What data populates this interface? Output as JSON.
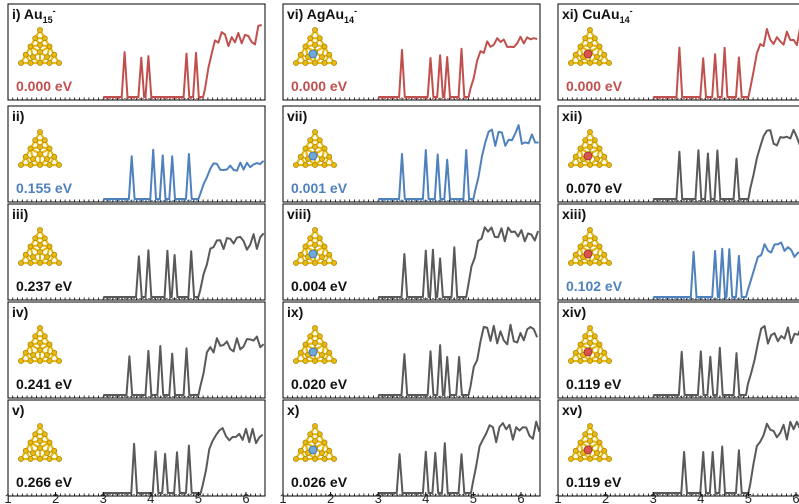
{
  "colors": {
    "red": "#c0504d",
    "blue": "#4f81bd",
    "gray": "#595959",
    "gold": "#e8b90f",
    "gold_dark": "#9a7400",
    "red_atom": "#d9534f",
    "blue_atom": "#6fa8dc"
  },
  "chart_data": [
    {
      "type": "line",
      "x_range": [
        1,
        6.4
      ],
      "x_ticks": [
        "1",
        "2",
        "3",
        "4",
        "5",
        "6"
      ],
      "panels": [
        {
          "id": "i",
          "label_main": "i) Au",
          "label_sub": "15",
          "label_sup": "-",
          "energy": "0.000 eV",
          "color": "red",
          "dopant": "none",
          "peaks": [
            3.45,
            3.8,
            3.95,
            4.75,
            4.95
          ],
          "onset": 5.1,
          "level": 0.72
        },
        {
          "id": "ii",
          "label_main": "ii)",
          "label_sub": "",
          "label_sup": "",
          "energy": "0.155 eV",
          "color": "blue",
          "dopant": "none",
          "peaks": [
            3.6,
            4.05,
            4.25,
            4.45,
            4.8
          ],
          "onset": 5.0,
          "level": 0.38
        },
        {
          "id": "iii",
          "label_main": "iii)",
          "label_sub": "",
          "label_sup": "",
          "energy": "0.237 eV",
          "color": "gray",
          "dopant": "none",
          "peaks": [
            3.75,
            3.95,
            4.35,
            4.5,
            4.85
          ],
          "onset": 5.0,
          "level": 0.62
        },
        {
          "id": "iv",
          "label_main": "iv)",
          "label_sub": "",
          "label_sup": "",
          "energy": "0.241 eV",
          "color": "gray",
          "dopant": "none",
          "peaks": [
            3.55,
            3.95,
            4.2,
            4.45,
            4.75
          ],
          "onset": 5.0,
          "level": 0.62
        },
        {
          "id": "v",
          "label_main": "v)",
          "label_sub": "",
          "label_sup": "",
          "energy": "0.266 eV",
          "color": "gray",
          "dopant": "none",
          "peaks": [
            3.65,
            4.1,
            4.3,
            4.55,
            4.8
          ],
          "onset": 5.05,
          "level": 0.68
        },
        {
          "id": "vi",
          "label_main": "vi) AgAu",
          "label_sub": "14",
          "label_sup": "-",
          "energy": "0.000 eV",
          "color": "red",
          "dopant": "Ag",
          "peaks": [
            3.5,
            4.1,
            4.3,
            4.45,
            4.75
          ],
          "onset": 4.9,
          "level": 0.6
        },
        {
          "id": "vii",
          "label_main": "vii)",
          "label_sub": "",
          "label_sup": "",
          "energy": "0.001 eV",
          "color": "blue",
          "dopant": "Ag",
          "peaks": [
            3.5,
            4.0,
            4.25,
            4.45,
            4.85
          ],
          "onset": 5.0,
          "level": 0.75
        },
        {
          "id": "viii",
          "label_main": "viii)",
          "label_sub": "",
          "label_sup": "",
          "energy": "0.004 eV",
          "color": "gray",
          "dopant": "Ag",
          "peaks": [
            3.55,
            4.0,
            4.15,
            4.3,
            4.6
          ],
          "onset": 4.85,
          "level": 0.75
        },
        {
          "id": "ix",
          "label_main": "ix)",
          "label_sub": "",
          "label_sup": "",
          "energy": "0.020 eV",
          "color": "gray",
          "dopant": "Ag",
          "peaks": [
            3.55,
            4.1,
            4.3,
            4.45,
            4.7
          ],
          "onset": 4.9,
          "level": 0.72
        },
        {
          "id": "x",
          "label_main": "x)",
          "label_sub": "",
          "label_sup": "",
          "energy": "0.026 eV",
          "color": "gray",
          "dopant": "Ag",
          "peaks": [
            3.45,
            4.0,
            4.2,
            4.4,
            4.75
          ],
          "onset": 4.95,
          "level": 0.72
        },
        {
          "id": "xi",
          "label_main": "xi) CuAu",
          "label_sub": "14",
          "label_sup": "-",
          "energy": "0.000 eV",
          "color": "red",
          "dopant": "Cu",
          "peaks": [
            3.55,
            4.05,
            4.3,
            4.5,
            4.8
          ],
          "onset": 5.0,
          "level": 0.72
        },
        {
          "id": "xii",
          "label_main": "xii)",
          "label_sub": "",
          "label_sup": "",
          "energy": "0.070 eV",
          "color": "gray",
          "dopant": "Cu",
          "peaks": [
            3.55,
            3.95,
            4.15,
            4.35,
            4.75
          ],
          "onset": 5.0,
          "level": 0.72
        },
        {
          "id": "xiii",
          "label_main": "xiii)",
          "label_sub": "",
          "label_sup": "",
          "energy": "0.102 eV",
          "color": "blue",
          "dopant": "Cu",
          "peaks": [
            3.85,
            4.3,
            4.45,
            4.6,
            4.8
          ],
          "onset": 4.95,
          "level": 0.55
        },
        {
          "id": "xiv",
          "label_main": "xiv)",
          "label_sub": "",
          "label_sup": "",
          "energy": "0.119 eV",
          "color": "gray",
          "dopant": "Cu",
          "peaks": [
            3.6,
            4.0,
            4.2,
            4.4,
            4.75
          ],
          "onset": 4.95,
          "level": 0.72
        },
        {
          "id": "xv",
          "label_main": "xv)",
          "label_sub": "",
          "label_sup": "",
          "energy": "0.119 eV",
          "color": "gray",
          "dopant": "Cu",
          "peaks": [
            3.65,
            4.05,
            4.25,
            4.45,
            4.8
          ],
          "onset": 5.0,
          "level": 0.72
        }
      ]
    }
  ]
}
